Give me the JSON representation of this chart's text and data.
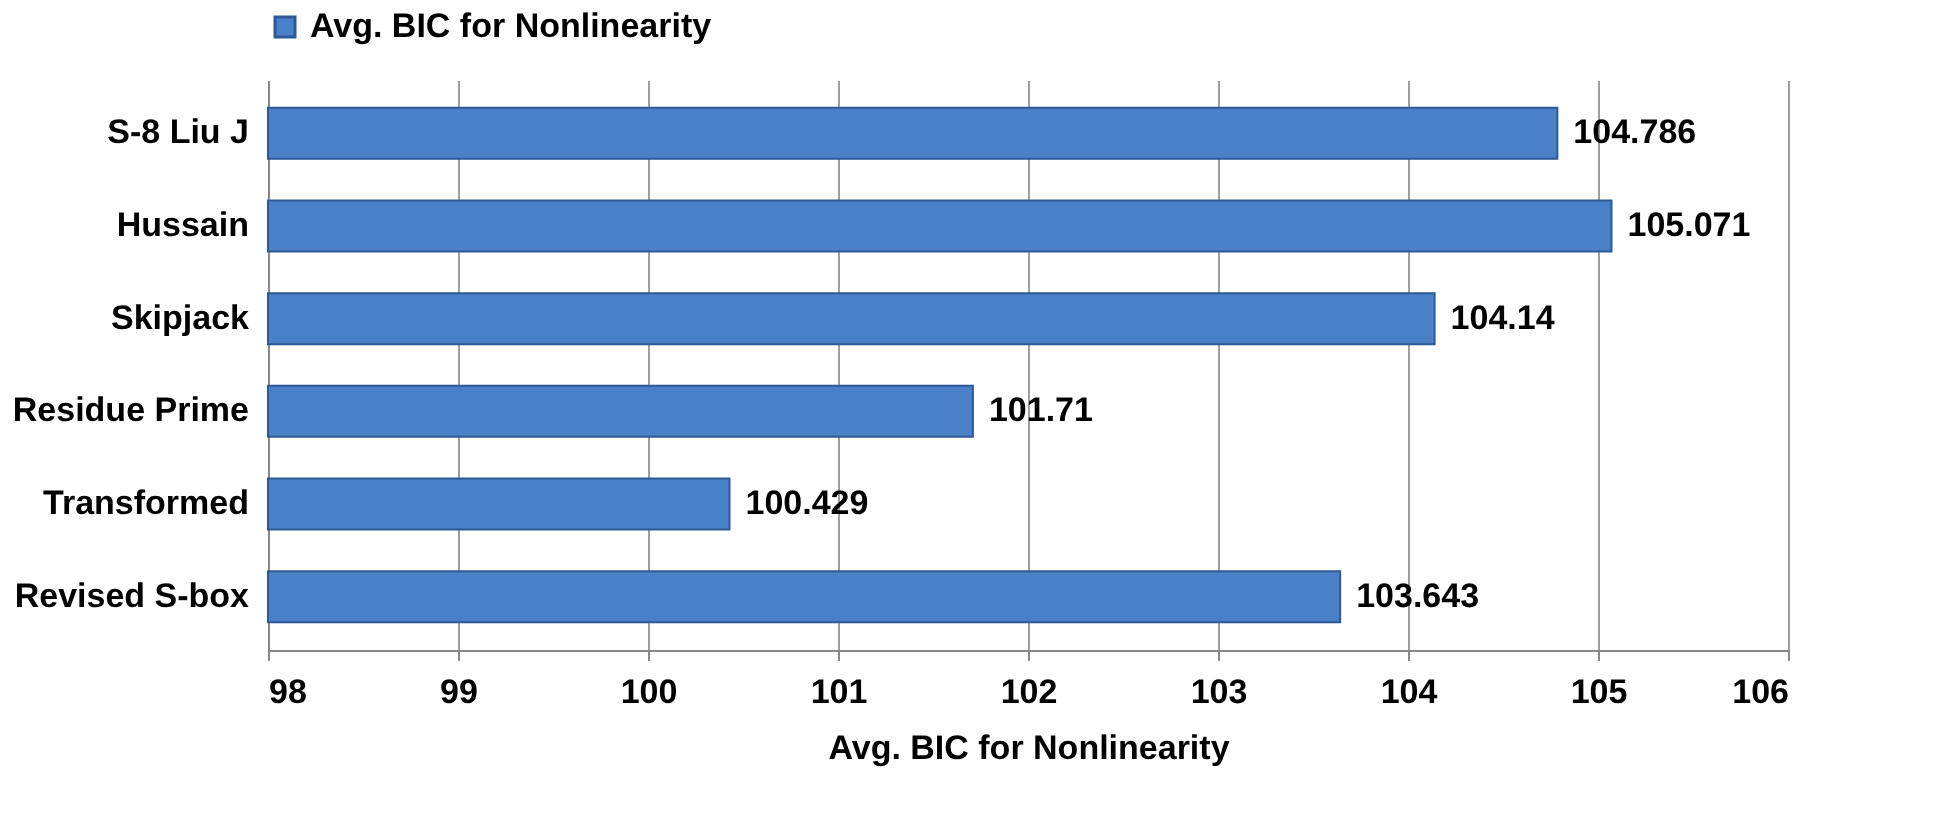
{
  "chart_data": {
    "type": "bar",
    "orientation": "horizontal",
    "xlabel": "Avg. BIC for Nonlinearity",
    "categories": [
      "S-8 Liu J",
      "Hussain",
      "Skipjack",
      "Residue Prime",
      "Transformed",
      "Revised S-box"
    ],
    "series": [
      {
        "name": "Avg. BIC for Nonlinearity",
        "color": "#4a80c8",
        "values": [
          104.786,
          105.071,
          104.14,
          101.71,
          100.429,
          103.643
        ]
      }
    ],
    "value_labels": [
      "104.786",
      "105.071",
      "104.14",
      "101.71",
      "100.429",
      "103.643"
    ],
    "xlim": [
      98,
      106
    ],
    "xticks": [
      98,
      99,
      100,
      101,
      102,
      103,
      104,
      105,
      106
    ],
    "grid": "x",
    "legend": "top"
  }
}
